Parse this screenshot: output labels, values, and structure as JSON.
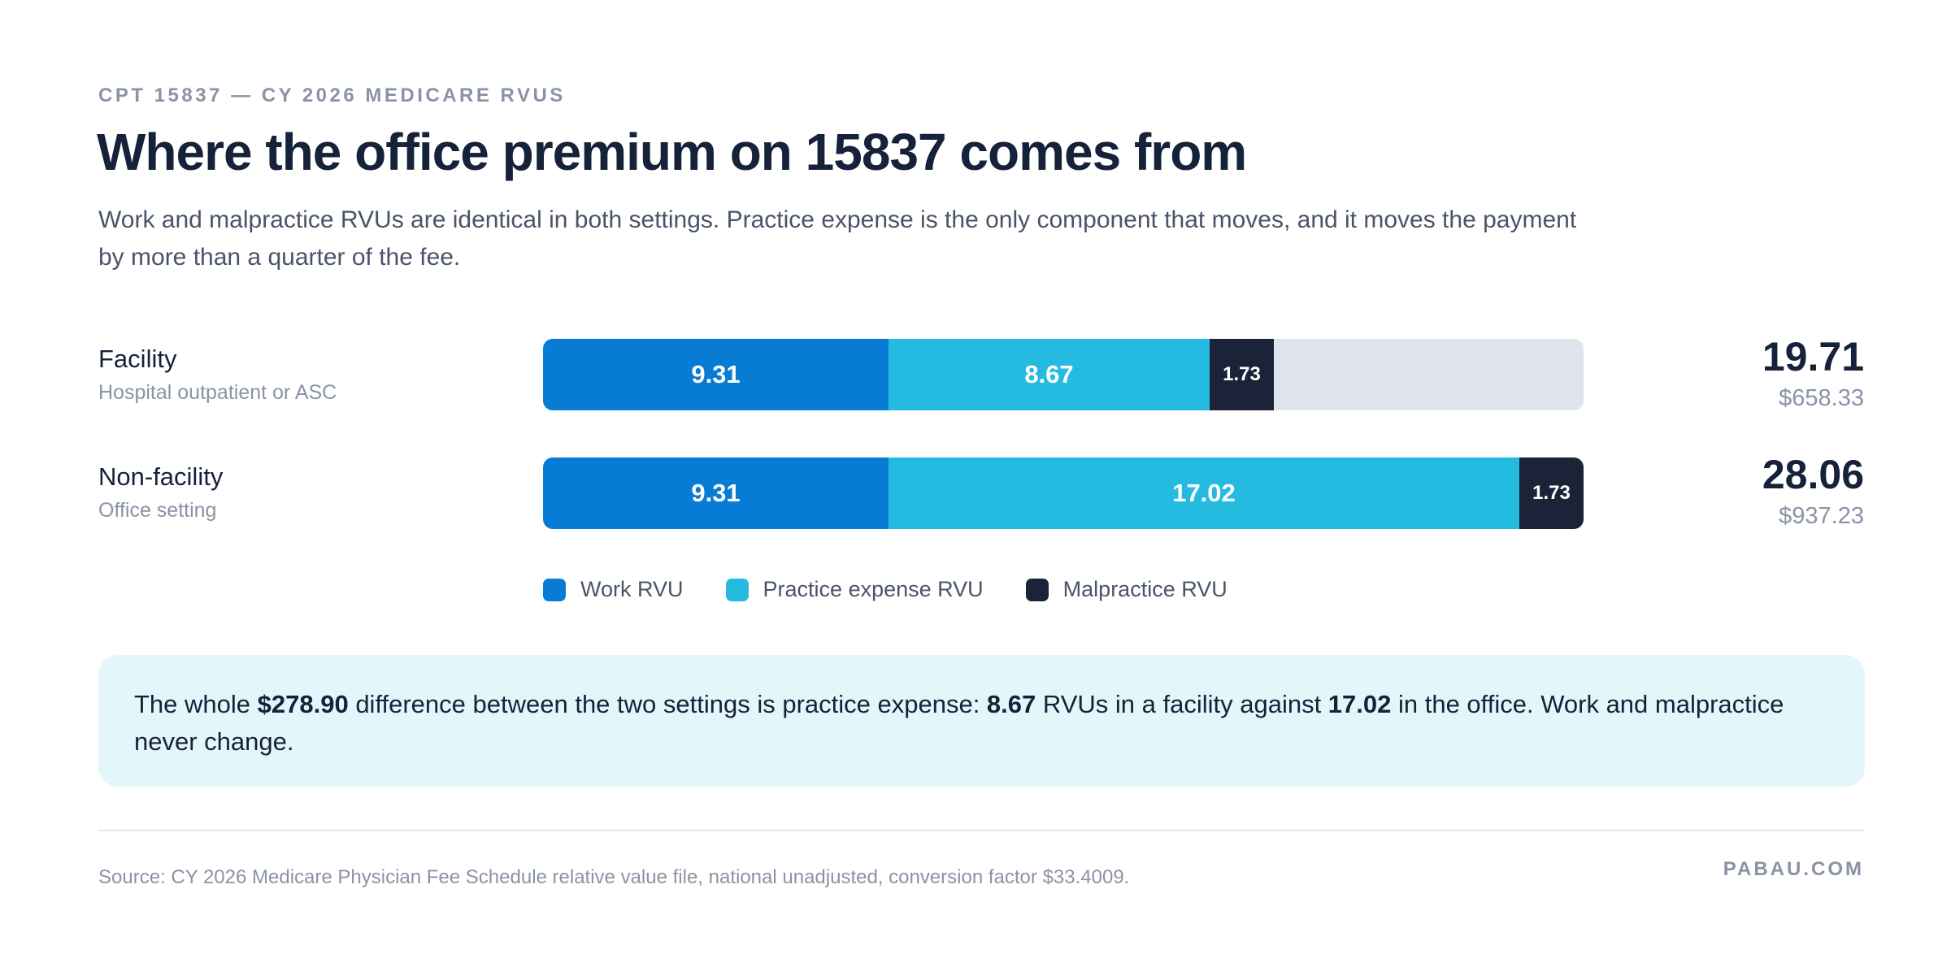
{
  "header": {
    "eyebrow": "CPT 15837 — CY 2026 MEDICARE RVUS",
    "title": "Where the office premium on 15837 comes from",
    "subtitle": "Work and malpractice RVUs are identical in both settings. Practice expense is the only component that moves, and it moves the payment by more than a quarter of the fee."
  },
  "chart_data": {
    "type": "bar",
    "orientation": "horizontal",
    "stacked": true,
    "title": "Where the office premium on 15837 comes from",
    "categories": [
      "Facility",
      "Non-facility"
    ],
    "category_sublabels": [
      "Hospital outpatient or ASC",
      "Office setting"
    ],
    "series": [
      {
        "name": "Work RVU",
        "values": [
          9.31,
          9.31
        ],
        "labels": [
          "9.31",
          "9.31"
        ],
        "color": "#087cd4"
      },
      {
        "name": "Practice expense RVU",
        "values": [
          8.67,
          17.02
        ],
        "labels": [
          "8.67",
          "17.02"
        ],
        "color": "#25bbe1"
      },
      {
        "name": "Malpractice RVU",
        "values": [
          1.73,
          1.73
        ],
        "labels": [
          "1.73",
          "1.73"
        ],
        "color": "#1a2338"
      }
    ],
    "totals": [
      "19.71",
      "28.06"
    ],
    "payments": [
      "$658.33",
      "$937.23"
    ],
    "xlim": [
      0,
      28.06
    ],
    "legend": "bottom"
  },
  "callout": {
    "part1": "The whole ",
    "amount": "$278.90",
    "part2": " difference between the two settings is practice expense: ",
    "facility_pe": "8.67",
    "part3": " RVUs in a facility against ",
    "office_pe": "17.02",
    "part4": " in the office. Work and malpractice never change."
  },
  "footer": {
    "source": "Source: CY 2026 Medicare Physician Fee Schedule relative value file, national unadjusted, conversion factor $33.4009.",
    "brand": "PABAU.COM"
  },
  "colors": {
    "track": "#dfe3ec",
    "callout_bg": "#e3f6fa"
  }
}
